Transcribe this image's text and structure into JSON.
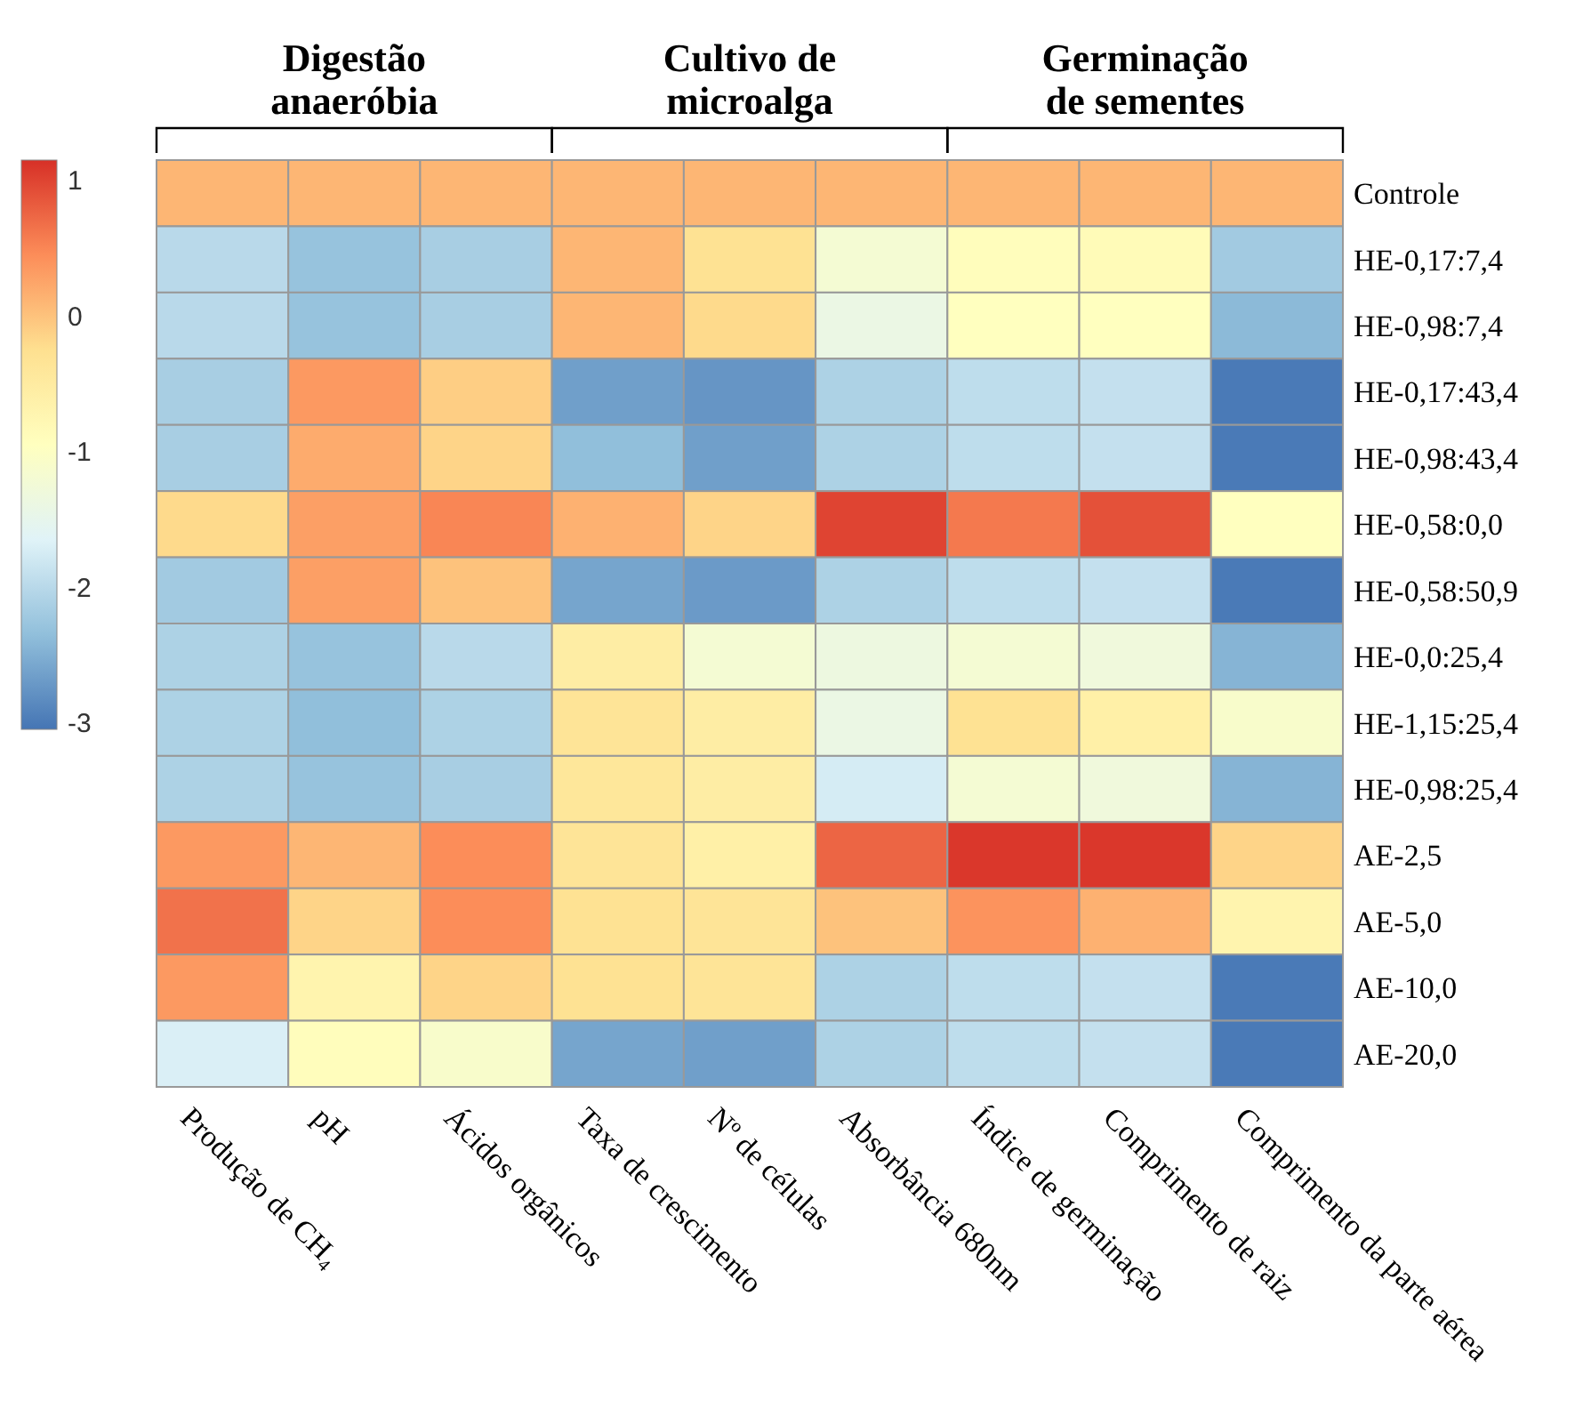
{
  "chart_data": {
    "type": "heatmap",
    "categories": [
      "Produção de CH₄",
      "pH",
      "Ácidos orgânicos",
      "Taxa de crescimento",
      "Nº de células",
      "Absorbância 680nm",
      "Índice de germinação",
      "Comprimento de raiz",
      "Comprimento da parte aérea"
    ],
    "y_categories": [
      "Controle",
      "HE-0,17:7,4",
      "HE-0,98:7,4",
      "HE-0,17:43,4",
      "HE-0,98:43,4",
      "HE-0,58:0,0",
      "HE-0,58:50,9",
      "HE-0,0:25,4",
      "HE-1,15:25,4",
      "HE-0,98:25,4",
      "AE-2,5",
      "AE-5,0",
      "AE-10,0",
      "AE-20,0"
    ],
    "cells": [
      [
        0.1,
        0.1,
        0.1,
        0.1,
        0.1,
        0.1,
        0.1,
        0.1,
        0.1
      ],
      [
        -2.0,
        -2.3,
        -2.15,
        0.1,
        -0.3,
        -1.2,
        -0.9,
        -0.85,
        -2.2
      ],
      [
        -2.0,
        -2.3,
        -2.15,
        0.1,
        -0.2,
        -1.4,
        -0.95,
        -0.95,
        -2.4
      ],
      [
        -2.15,
        0.35,
        -0.1,
        -2.65,
        -2.75,
        -2.1,
        -1.95,
        -1.9,
        -3.0
      ],
      [
        -2.15,
        0.2,
        -0.15,
        -2.35,
        -2.65,
        -2.1,
        -1.95,
        -1.9,
        -3.0
      ],
      [
        -0.2,
        0.3,
        0.5,
        0.15,
        -0.15,
        1.0,
        0.6,
        0.9,
        -0.95
      ],
      [
        -2.2,
        0.3,
        0.0,
        -2.6,
        -2.7,
        -2.1,
        -1.95,
        -1.9,
        -3.0
      ],
      [
        -2.1,
        -2.3,
        -2.0,
        -0.55,
        -1.2,
        -1.35,
        -1.2,
        -1.3,
        -2.45
      ],
      [
        -2.1,
        -2.35,
        -2.1,
        -0.35,
        -0.55,
        -1.4,
        -0.3,
        -0.6,
        -1.1
      ],
      [
        -2.1,
        -2.3,
        -2.15,
        -0.4,
        -0.55,
        -1.75,
        -1.2,
        -1.3,
        -2.45
      ],
      [
        0.35,
        0.1,
        0.45,
        -0.35,
        -0.6,
        0.75,
        1.1,
        1.1,
        -0.15
      ],
      [
        0.65,
        -0.15,
        0.45,
        -0.3,
        -0.35,
        0.0,
        0.4,
        0.15,
        -0.7
      ],
      [
        0.35,
        -0.7,
        -0.15,
        -0.3,
        -0.35,
        -2.1,
        -1.95,
        -1.9,
        -3.0
      ],
      [
        -1.7,
        -0.9,
        -1.1,
        -2.6,
        -2.65,
        -2.1,
        -1.95,
        -1.9,
        -3.0
      ]
    ],
    "clim": [
      -3.05,
      1.15
    ],
    "cticks": [
      -3,
      -2,
      -1,
      0,
      1
    ],
    "annotations": [
      "Digestão\nanaeróbia",
      "Cultivo de\nmicroalga",
      "Germinação\nde sementes"
    ]
  }
}
